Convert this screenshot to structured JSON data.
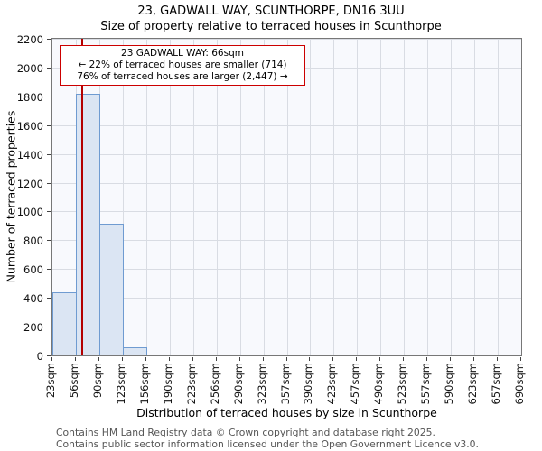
{
  "title": "23, GADWALL WAY, SCUNTHORPE, DN16 3UU",
  "subtitle": "Size of property relative to terraced houses in Scunthorpe",
  "annotation": {
    "line1": "23 GADWALL WAY: 66sqm",
    "line2": "← 22% of terraced houses are smaller (714)",
    "line3": "76% of terraced houses are larger (2,447) →"
  },
  "footer": {
    "line1": "Contains HM Land Registry data © Crown copyright and database right 2025.",
    "line2": "Contains public sector information licensed under the Open Government Licence v3.0."
  },
  "colors": {
    "bar_fill": "#dbe5f3",
    "bar_border": "#6f9bd1",
    "marker": "#b40000",
    "annotation_border": "#cc0000",
    "grid": "#d9dce3",
    "plot_background": "#f8f9fd"
  },
  "chart_data": {
    "type": "bar",
    "title": "23, GADWALL WAY, SCUNTHORPE, DN16 3UU — Size of property relative to terraced houses in Scunthorpe",
    "xlabel": "Distribution of terraced houses by size in Scunthorpe",
    "ylabel": "Number of terraced properties",
    "x_tick_labels": [
      "23sqm",
      "56sqm",
      "90sqm",
      "123sqm",
      "156sqm",
      "190sqm",
      "223sqm",
      "256sqm",
      "290sqm",
      "323sqm",
      "357sqm",
      "390sqm",
      "423sqm",
      "457sqm",
      "490sqm",
      "523sqm",
      "557sqm",
      "590sqm",
      "623sqm",
      "657sqm",
      "690sqm"
    ],
    "bin_edges": [
      23,
      56,
      90,
      123,
      156,
      190,
      223,
      256,
      290,
      323,
      357,
      390,
      423,
      457,
      490,
      523,
      557,
      590,
      623,
      657,
      690
    ],
    "values": [
      440,
      1820,
      915,
      55,
      0,
      0,
      0,
      0,
      0,
      0,
      0,
      0,
      0,
      0,
      0,
      0,
      0,
      0,
      0,
      0
    ],
    "y_ticks": [
      0,
      200,
      400,
      600,
      800,
      1000,
      1200,
      1400,
      1600,
      1800,
      2000,
      2200
    ],
    "ylim": [
      0,
      2200
    ],
    "grid": true,
    "legend": "none",
    "marker_value": 66,
    "marker_label": "23 GADWALL WAY: 66sqm",
    "smaller_pct": 22,
    "smaller_count": 714,
    "larger_pct": 76,
    "larger_count": 2447
  }
}
